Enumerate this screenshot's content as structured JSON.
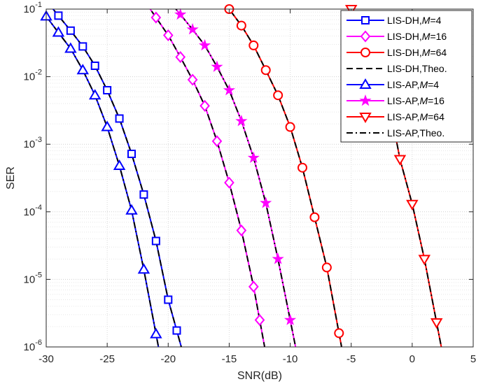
{
  "chart_data": {
    "type": "line",
    "title": "",
    "xlabel": "SNR(dB)",
    "ylabel": "SER",
    "xlim": [
      -30,
      5
    ],
    "ylim": [
      1e-06,
      0.1
    ],
    "yscale": "log",
    "grid": true,
    "minor_grid": true,
    "legend_position": "top-right",
    "x_ticks": [
      -30,
      -25,
      -20,
      -15,
      -10,
      -5,
      0,
      5
    ],
    "x_tick_labels": [
      "-30",
      "-25",
      "-20",
      "-15",
      "-10",
      "-5",
      "0",
      "5"
    ],
    "y_ticks": [
      1e-06,
      1e-05,
      0.0001,
      0.001,
      0.01,
      0.1
    ],
    "y_tick_labels": [
      {
        "base": "10",
        "exp": "-6"
      },
      {
        "base": "10",
        "exp": "-5"
      },
      {
        "base": "10",
        "exp": "-4"
      },
      {
        "base": "10",
        "exp": "-3"
      },
      {
        "base": "10",
        "exp": "-2"
      },
      {
        "base": "10",
        "exp": "-1"
      }
    ],
    "series": [
      {
        "name": "LIS-DH,M=4",
        "legend_plain": "LIS-DH,",
        "legend_italic": "M",
        "legend_tail": "=4",
        "color": "#0000ff",
        "marker": "square",
        "style": "solid",
        "x": [
          -29,
          -28,
          -27,
          -26,
          -25,
          -24,
          -23,
          -22,
          -21,
          -20,
          -19.3
        ],
        "y": [
          0.08,
          0.048,
          0.028,
          0.0145,
          0.0063,
          0.0024,
          0.00072,
          0.00018,
          3.7e-05,
          5e-06,
          1.75e-06
        ]
      },
      {
        "name": "LIS-DH,M=16",
        "legend_plain": "LIS-DH,",
        "legend_italic": "M",
        "legend_tail": "=16",
        "color": "#ff00ff",
        "marker": "diamond",
        "style": "solid",
        "x": [
          -21,
          -20,
          -19,
          -18,
          -17,
          -16,
          -15,
          -14,
          -13,
          -12.5
        ],
        "y": [
          0.075,
          0.041,
          0.0195,
          0.009,
          0.0037,
          0.00111,
          0.00027,
          5.3e-05,
          7.8e-06,
          2.5e-06
        ]
      },
      {
        "name": "LIS-DH,M=64",
        "legend_plain": "LIS-DH,",
        "legend_italic": "M",
        "legend_tail": "=64",
        "color": "#ff0000",
        "marker": "circle",
        "style": "solid",
        "x": [
          -15,
          -14,
          -13,
          -12,
          -11,
          -10,
          -9,
          -8,
          -7,
          -6
        ],
        "y": [
          0.1,
          0.057,
          0.029,
          0.0125,
          0.0053,
          0.0018,
          0.00045,
          8.3e-05,
          1.5e-05,
          1.6e-06
        ]
      },
      {
        "name": "LIS-DH,Theo.",
        "legend_plain": "LIS-DH,Theo.",
        "legend_italic": "",
        "legend_tail": "",
        "color": "#000000",
        "marker": "none",
        "style": "dashed",
        "group": "LIS-DH"
      },
      {
        "name": "LIS-AP,M=4",
        "legend_plain": "LIS-AP,",
        "legend_italic": "M",
        "legend_tail": "=4",
        "color": "#0000ff",
        "marker": "triangle-up",
        "style": "solid",
        "x": [
          -30,
          -29,
          -28,
          -27,
          -26,
          -25,
          -24,
          -23,
          -22,
          -21
        ],
        "y": [
          0.078,
          0.045,
          0.026,
          0.0125,
          0.0053,
          0.0018,
          0.00048,
          0.000105,
          1.4e-05,
          1.55e-06
        ]
      },
      {
        "name": "LIS-AP,M=16",
        "legend_plain": "LIS-AP,",
        "legend_italic": "M",
        "legend_tail": "=16",
        "color": "#ff00ff",
        "marker": "star",
        "style": "solid",
        "x": [
          -19,
          -18,
          -17,
          -16,
          -15,
          -14,
          -13,
          -12,
          -11,
          -10
        ],
        "y": [
          0.083,
          0.05,
          0.029,
          0.014,
          0.0063,
          0.0022,
          0.00063,
          0.000135,
          2e-05,
          2.5e-06
        ]
      },
      {
        "name": "LIS-AP,M=64",
        "legend_plain": "LIS-AP,",
        "legend_italic": "M",
        "legend_tail": "=64",
        "color": "#ff0000",
        "marker": "triangle-down",
        "style": "solid",
        "x": [
          -5,
          -4,
          -3,
          -2,
          -1,
          0,
          1,
          2
        ],
        "y": [
          0.1,
          0.052,
          0.019,
          0.0052,
          0.0006,
          0.00013,
          2e-05,
          2.3e-06
        ]
      },
      {
        "name": "LIS-AP,Theo.",
        "legend_plain": "LIS-AP,Theo.",
        "legend_italic": "",
        "legend_tail": "",
        "color": "#000000",
        "marker": "none",
        "style": "dashdot",
        "group": "LIS-AP"
      }
    ]
  }
}
